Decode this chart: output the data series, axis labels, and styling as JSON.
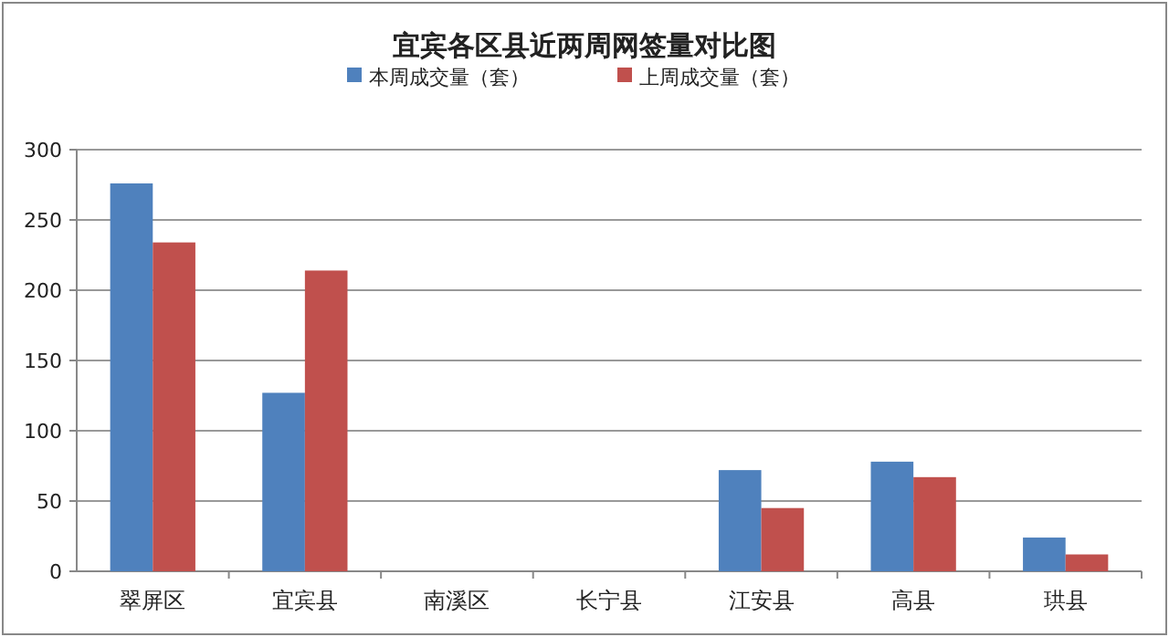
{
  "chart_data": {
    "type": "bar",
    "title": "宜宾各区县近两周网签量对比图",
    "categories": [
      "翠屏区",
      "宜宾县",
      "南溪区",
      "长宁县",
      "江安县",
      "高县",
      "珙县"
    ],
    "series": [
      {
        "name": "本周成交量（套）",
        "color": "#4f81bd",
        "values": [
          276,
          127,
          0,
          0,
          72,
          78,
          24
        ]
      },
      {
        "name": "上周成交量（套）",
        "color": "#c0504d",
        "values": [
          234,
          214,
          0,
          0,
          45,
          67,
          12
        ]
      }
    ],
    "ylim": [
      0,
      300
    ],
    "yticks": [
      0,
      50,
      100,
      150,
      200,
      250,
      300
    ],
    "grid": "y",
    "legend": "top"
  }
}
